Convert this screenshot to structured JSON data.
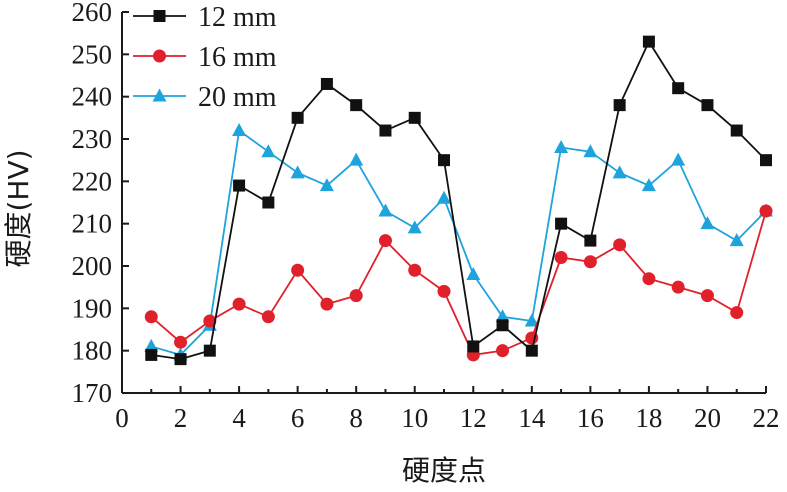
{
  "chart_data": {
    "type": "line",
    "title": "",
    "xlabel": "硬度点",
    "ylabel": "硬度(HV)",
    "xlim": [
      0,
      22
    ],
    "ylim": [
      170,
      260
    ],
    "xticks": [
      0,
      2,
      4,
      6,
      8,
      10,
      12,
      14,
      16,
      18,
      20,
      22
    ],
    "yticks": [
      170,
      180,
      190,
      200,
      210,
      220,
      230,
      240,
      250,
      260
    ],
    "grid": false,
    "legend_position": "top-left",
    "x": [
      1,
      2,
      3,
      4,
      5,
      6,
      7,
      8,
      9,
      10,
      11,
      12,
      13,
      14,
      15,
      16,
      17,
      18,
      19,
      20,
      21,
      22
    ],
    "series": [
      {
        "name": "12 mm",
        "color": "#111111",
        "marker": "square",
        "values": [
          179,
          178,
          180,
          219,
          215,
          235,
          243,
          238,
          232,
          235,
          225,
          181,
          186,
          180,
          210,
          206,
          238,
          253,
          242,
          238,
          232,
          225
        ]
      },
      {
        "name": "16 mm",
        "color": "#e0202a",
        "marker": "circle",
        "values": [
          188,
          182,
          187,
          191,
          188,
          199,
          191,
          193,
          206,
          199,
          194,
          179,
          180,
          183,
          202,
          201,
          205,
          197,
          195,
          193,
          189,
          213
        ]
      },
      {
        "name": "20 mm",
        "color": "#1ea3dc",
        "marker": "triangle",
        "values": [
          181,
          179,
          186,
          232,
          227,
          222,
          219,
          225,
          213,
          209,
          216,
          198,
          188,
          187,
          228,
          227,
          222,
          219,
          225,
          210,
          206,
          213
        ]
      }
    ]
  }
}
